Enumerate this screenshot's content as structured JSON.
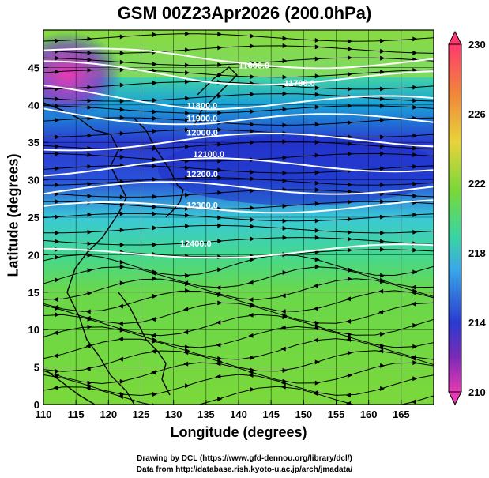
{
  "title": "GSM 00Z23Apr2026 (200.0hPa)",
  "axes": {
    "xlabel": "Longitude (degrees)",
    "ylabel": "Latitude  (degrees)",
    "x_ticks": [
      "110",
      "115",
      "120",
      "125",
      "130",
      "135",
      "140",
      "145",
      "150",
      "155",
      "160",
      "165"
    ],
    "y_ticks": [
      "0",
      "5",
      "10",
      "15",
      "20",
      "25",
      "30",
      "35",
      "40",
      "45"
    ]
  },
  "colorbar": {
    "labels": [
      "230",
      "226",
      "222",
      "218",
      "214",
      "210"
    ],
    "colors": [
      "#ff3a6e",
      "#f08a3a",
      "#e8d43a",
      "#7ad83a",
      "#3ad6a0",
      "#3aa6e8",
      "#2a3ad0",
      "#7a2ab4",
      "#e83ab4"
    ]
  },
  "contour_labels": [
    "11600.0",
    "11700.0",
    "11800.0",
    "11900.0",
    "12000.0",
    "12100.0",
    "12200.0",
    "12300.0",
    "12400.0"
  ],
  "credits": {
    "line1": "Drawing by DCL (https://www.gfd-dennou.org/library/dcl/)",
    "line2": "Data from http://database.rish.kyoto-u.ac.jp/arch/jmadata/"
  },
  "chart_data": {
    "type": "heatmap",
    "title": "GSM 00Z23Apr2026 (200.0hPa)",
    "xlabel": "Longitude (degrees)",
    "ylabel": "Latitude  (degrees)",
    "xlim": [
      110,
      170
    ],
    "ylim": [
      0,
      50
    ],
    "colorbar_range": [
      210,
      230
    ],
    "contour_levels": [
      11600,
      11700,
      11800,
      11900,
      12000,
      12100,
      12200,
      12300,
      12400
    ]
  }
}
